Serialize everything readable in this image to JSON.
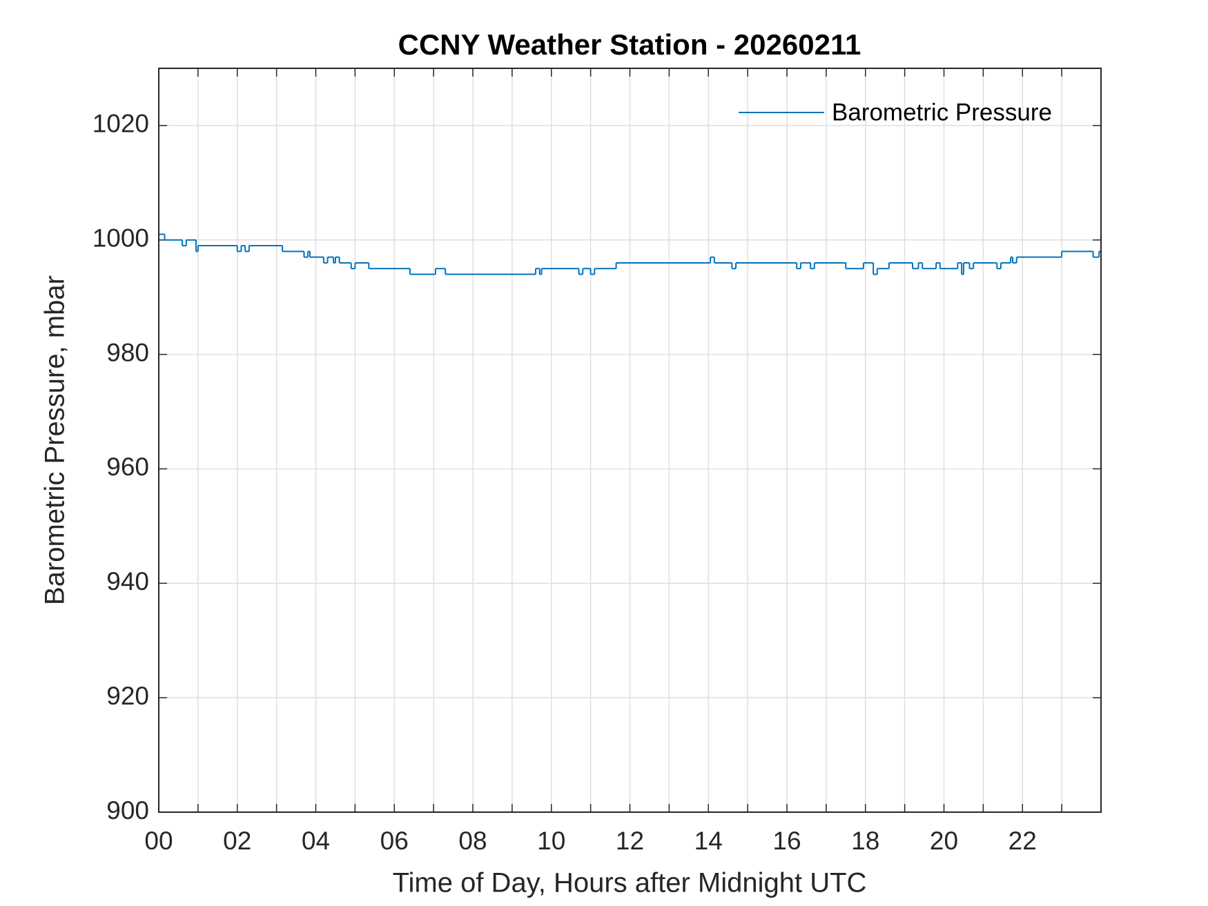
{
  "chart_data": {
    "type": "line",
    "title": "CCNY Weather Station - 20260211",
    "xlabel": "Time of Day, Hours after Midnight UTC",
    "ylabel": "Barometric Pressure, mbar",
    "xlim": [
      0,
      24
    ],
    "ylim": [
      900,
      1030
    ],
    "xticks": [
      {
        "value": 0,
        "label": "00"
      },
      {
        "value": 2,
        "label": "02"
      },
      {
        "value": 4,
        "label": "04"
      },
      {
        "value": 6,
        "label": "06"
      },
      {
        "value": 8,
        "label": "08"
      },
      {
        "value": 10,
        "label": "10"
      },
      {
        "value": 12,
        "label": "12"
      },
      {
        "value": 14,
        "label": "14"
      },
      {
        "value": 16,
        "label": "16"
      },
      {
        "value": 18,
        "label": "18"
      },
      {
        "value": 20,
        "label": "20"
      },
      {
        "value": 22,
        "label": "22"
      }
    ],
    "xminorticks": [
      1,
      3,
      5,
      7,
      9,
      11,
      13,
      15,
      17,
      19,
      21,
      23
    ],
    "yticks": [
      900,
      920,
      940,
      960,
      980,
      1000,
      1020
    ],
    "grid": true,
    "legend": "upper right",
    "step": true,
    "series": [
      {
        "name": "Barometric Pressure",
        "color": "#0072bd",
        "x": [
          0,
          0.15,
          0.6,
          0.7,
          0.95,
          1.0,
          2.0,
          2.1,
          2.2,
          2.3,
          3.15,
          3.7,
          3.8,
          3.85,
          4.2,
          4.3,
          4.45,
          4.5,
          4.6,
          4.9,
          5.0,
          5.35,
          6.4,
          7.05,
          7.3,
          9.6,
          9.7,
          9.75,
          10.7,
          10.8,
          11.0,
          11.1,
          11.65,
          14.05,
          14.15,
          14.6,
          14.7,
          16.25,
          16.35,
          16.6,
          16.7,
          17.5,
          17.95,
          18.2,
          18.3,
          18.6,
          19.2,
          19.35,
          19.45,
          19.8,
          19.9,
          20.35,
          20.45,
          20.5,
          20.65,
          20.75,
          21.35,
          21.45,
          21.7,
          21.75,
          21.85,
          23.0,
          23.8,
          23.95,
          24
        ],
        "values": [
          1001,
          1000,
          999,
          1000,
          998,
          999,
          998,
          999,
          998,
          999,
          998,
          997,
          998,
          997,
          996,
          997,
          996,
          997,
          996,
          995,
          996,
          995,
          994,
          995,
          994,
          995,
          994,
          995,
          994,
          995,
          994,
          995,
          996,
          997,
          996,
          995,
          996,
          995,
          996,
          995,
          996,
          995,
          996,
          994,
          995,
          996,
          995,
          996,
          995,
          996,
          995,
          996,
          994,
          996,
          995,
          996,
          995,
          996,
          997,
          996,
          997,
          998,
          997,
          998,
          998
        ]
      }
    ]
  }
}
